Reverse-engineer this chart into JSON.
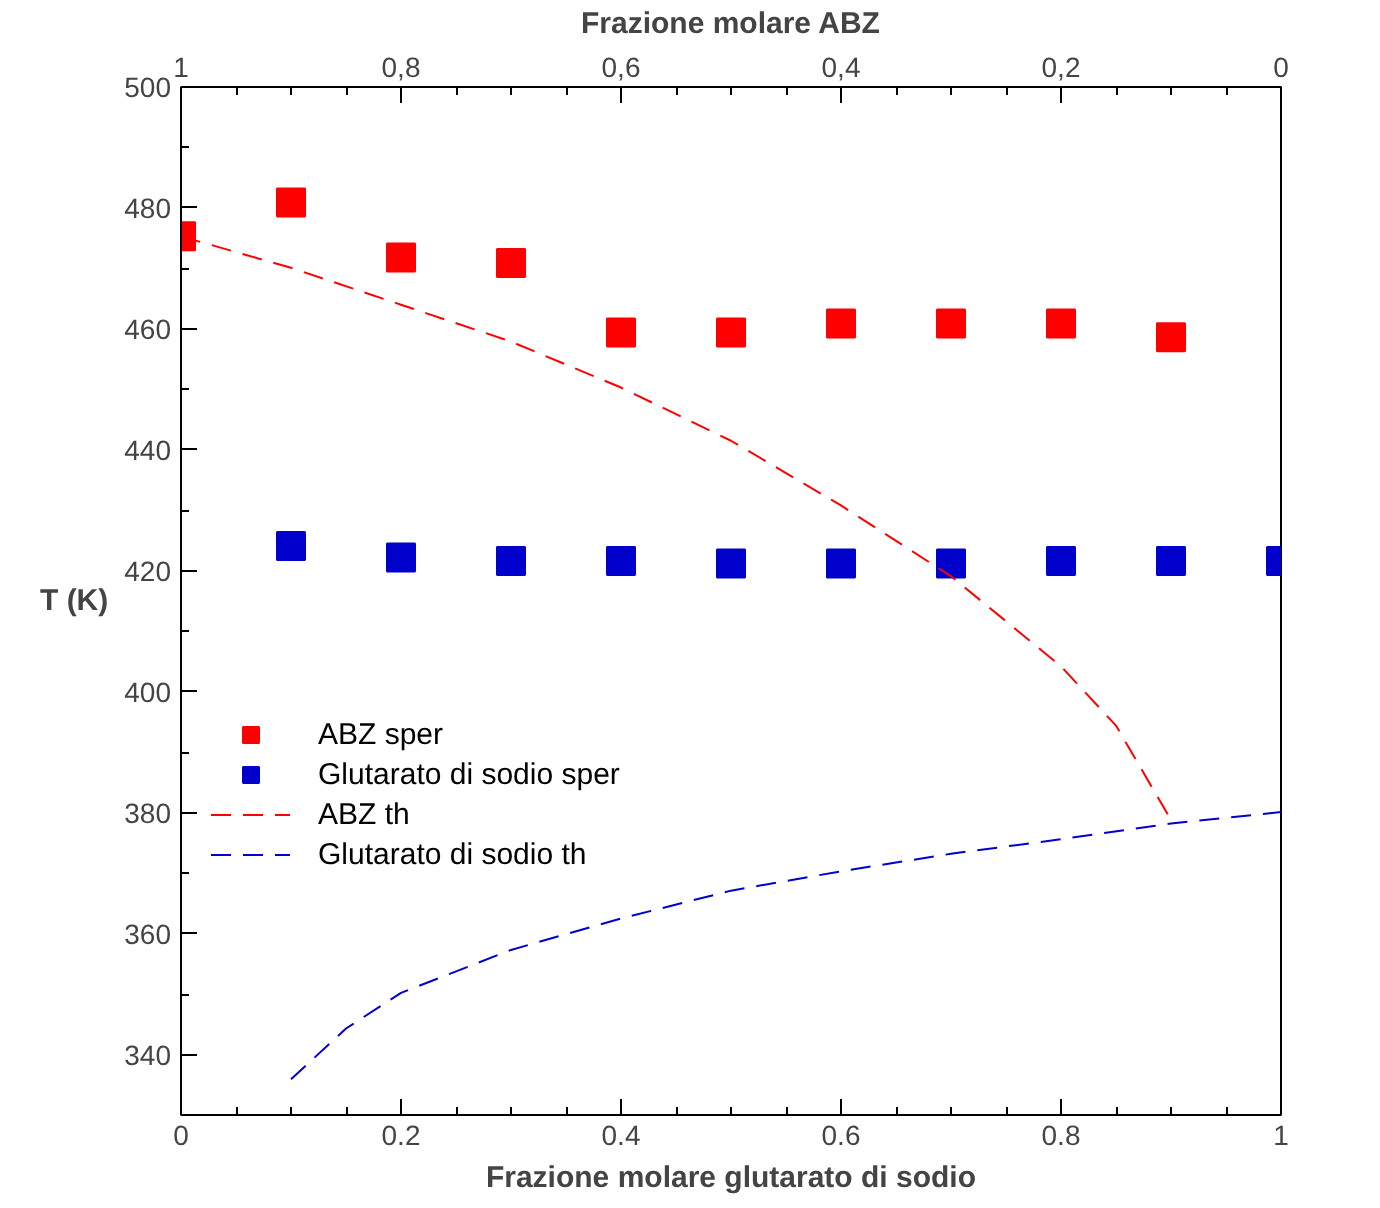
{
  "chart_data": {
    "type": "scatter",
    "xlabel": "Frazione molare glutarato di sodio",
    "ylabel": "T (K)",
    "x2label": "Frazione molare ABZ",
    "xlim": [
      0,
      1
    ],
    "xticks": [
      0,
      0.2,
      0.4,
      0.6,
      0.8,
      1
    ],
    "x2lim": [
      1,
      0
    ],
    "x2ticks": [
      1,
      {
        "value": 0.8,
        "label": "0,8"
      },
      {
        "value": 0.6,
        "label": "0,6"
      },
      {
        "value": 0.4,
        "label": "0,4"
      },
      {
        "value": 0.2,
        "label": "0,2"
      },
      0
    ],
    "ylim": [
      330,
      500
    ],
    "yticks": [
      340,
      360,
      380,
      400,
      420,
      440,
      460,
      480,
      500
    ],
    "grid": false,
    "legend": "left",
    "series": [
      {
        "name": "ABZ sper",
        "marker": "square",
        "color": "#ff0000",
        "x": [
          0,
          0.1,
          0.2,
          0.3,
          0.4,
          0.5,
          0.6,
          0.7,
          0.8,
          0.9
        ],
        "values": [
          475.3,
          480.9,
          471.8,
          470.9,
          459.4,
          459.4,
          460.9,
          460.9,
          460.9,
          458.6
        ]
      },
      {
        "name": "Glutarato di sodio sper",
        "marker": "square",
        "color": "#0000cc",
        "x": [
          0.1,
          0.2,
          0.3,
          0.4,
          0.5,
          0.6,
          0.7,
          0.8,
          0.9,
          1
        ],
        "values": [
          424.1,
          422.2,
          421.6,
          421.6,
          421.2,
          421.2,
          421.2,
          421.6,
          421.6,
          421.6
        ]
      },
      {
        "name": "ABZ th",
        "type": "line",
        "line_style": "dashed",
        "color": "#ff0000",
        "x": [
          0,
          0.1,
          0.2,
          0.3,
          0.4,
          0.5,
          0.6,
          0.7,
          0.8,
          0.85,
          0.9
        ],
        "values": [
          475.3,
          470.1,
          464,
          457.9,
          450.3,
          441.5,
          430.8,
          419.1,
          404.2,
          394.4,
          378.8
        ]
      },
      {
        "name": "Glutarato di sodio th",
        "type": "line",
        "line_style": "dashed",
        "color": "#0000cc",
        "x": [
          0.1,
          0.15,
          0.2,
          0.3,
          0.4,
          0.5,
          0.6,
          0.7,
          0.8,
          0.9,
          1
        ],
        "values": [
          335.9,
          344.3,
          350.2,
          357.3,
          362.5,
          367.1,
          370.3,
          373.2,
          375.6,
          378.2,
          380.1
        ]
      }
    ]
  }
}
